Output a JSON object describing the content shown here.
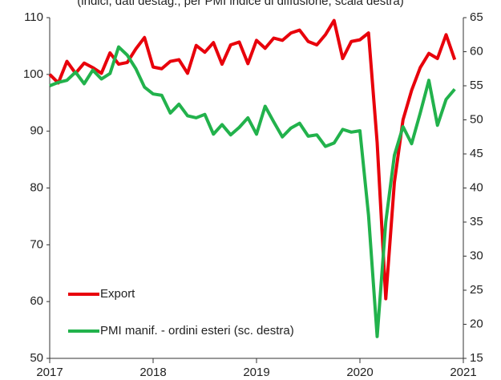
{
  "chart_data": {
    "type": "line",
    "subtitle": "(indici, dati destag.; per PMI indice di diffusione, scala destra)",
    "x": [
      2017.0,
      2017.0833,
      2017.1667,
      2017.25,
      2017.3333,
      2017.4167,
      2017.5,
      2017.5833,
      2017.6667,
      2017.75,
      2017.8333,
      2017.9167,
      2018.0,
      2018.0833,
      2018.1667,
      2018.25,
      2018.3333,
      2018.4167,
      2018.5,
      2018.5833,
      2018.6667,
      2018.75,
      2018.8333,
      2018.9167,
      2019.0,
      2019.0833,
      2019.1667,
      2019.25,
      2019.3333,
      2019.4167,
      2019.5,
      2019.5833,
      2019.6667,
      2019.75,
      2019.8333,
      2019.9167,
      2020.0,
      2020.0833,
      2020.1667,
      2020.25,
      2020.3333,
      2020.4167,
      2020.5,
      2020.5833,
      2020.6667,
      2020.75,
      2020.8333,
      2020.9167
    ],
    "series": [
      {
        "name": "Export",
        "color": "#e8000b",
        "axis": "y",
        "values": [
          100,
          98.5,
          102.3,
          100.2,
          102,
          101.2,
          100.2,
          103.8,
          101.8,
          102.1,
          104.5,
          106.5,
          101.3,
          101,
          102.3,
          102.6,
          100.2,
          105.1,
          103.9,
          105.6,
          101.8,
          105.2,
          105.7,
          101.9,
          106,
          104.6,
          106.4,
          106,
          107.3,
          107.8,
          105.8,
          105.2,
          107,
          109.5,
          102.8,
          105.8,
          106.1,
          107.3,
          88,
          60.5,
          81,
          92,
          97.2,
          101.2,
          103.7,
          102.8,
          107,
          102.6
        ]
      },
      {
        "name": "PMI manif. - ordini esteri (sc. destra)",
        "color": "#22b24c",
        "axis": "y2",
        "values": [
          55,
          55.5,
          55.8,
          57,
          55.3,
          57.3,
          56,
          56.8,
          60.7,
          59.5,
          57.5,
          54.8,
          53.8,
          53.6,
          51,
          52.3,
          50.6,
          50.3,
          50.8,
          47.9,
          49.3,
          47.8,
          48.9,
          50.3,
          47.9,
          52,
          49.7,
          47.5,
          48.8,
          49.5,
          47.6,
          47.8,
          46.1,
          46.6,
          48.6,
          48.2,
          48.4,
          36,
          18.2,
          35,
          44.8,
          49,
          46.5,
          51,
          55.8,
          49.2,
          53,
          54.5
        ]
      }
    ],
    "xlim": [
      2017,
      2021
    ],
    "xticks": [
      2017,
      2018,
      2019,
      2020,
      2021
    ],
    "ylim": [
      50,
      110
    ],
    "yticks": [
      50,
      60,
      70,
      80,
      90,
      100,
      110
    ],
    "y2lim": [
      15,
      65
    ],
    "y2ticks": [
      15,
      20,
      25,
      30,
      35,
      40,
      45,
      50,
      55,
      60,
      65
    ]
  }
}
